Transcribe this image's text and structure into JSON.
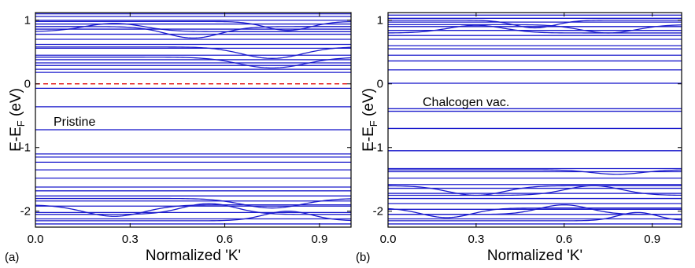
{
  "chart_data": [
    {
      "type": "line",
      "panel_label": "(a)",
      "annotation": "Pristine",
      "xlabel": "Normalized 'K'",
      "ylabel_main": "E-E",
      "ylabel_sub": "F",
      "ylabel_unit": " (eV)",
      "xlim": [
        0.0,
        1.0
      ],
      "ylim": [
        -2.25,
        1.12
      ],
      "xticks": [
        0.0,
        0.3,
        0.6,
        0.9
      ],
      "xtick_labels": [
        "0.0",
        "0.3",
        "0.6",
        "0.9"
      ],
      "yticks": [
        1,
        0,
        -1,
        -2
      ],
      "ytick_labels": [
        "1",
        "0",
        "-1",
        "-2"
      ],
      "line_color": "#1a1acc",
      "fermi_level": {
        "y": 0.0,
        "color": "#e00000",
        "style": "dashed"
      },
      "flat_bands": [
        0.18,
        0.23,
        0.29,
        0.33,
        0.38,
        0.45,
        0.56,
        0.62,
        0.7,
        0.78,
        0.86,
        0.94,
        1.0,
        1.06,
        1.1,
        -0.07,
        -0.36,
        -0.72,
        -1.1,
        -1.15,
        -1.23,
        -1.35,
        -1.48,
        -1.62,
        -1.68,
        -1.76,
        -1.84,
        -1.92,
        -2.02,
        -2.12,
        -2.2
      ],
      "curved_bands": [
        {
          "y0": 0.42,
          "y_mid": 0.25,
          "x_mid": 0.75,
          "width": 0.22
        },
        {
          "y0": 0.58,
          "y_mid": 0.4,
          "x_mid": 0.75,
          "width": 0.2
        },
        {
          "y0": 0.82,
          "y_mid": 0.95,
          "x_mid": 0.25,
          "width": 0.2
        },
        {
          "y0": 0.9,
          "y_mid": 0.72,
          "x_mid": 0.5,
          "width": 0.18
        },
        {
          "y0": 0.98,
          "y_mid": 0.84,
          "x_mid": 0.8,
          "width": 0.15
        },
        {
          "y0": -1.8,
          "y_mid": -1.95,
          "x_mid": 0.75,
          "width": 0.2
        },
        {
          "y0": -1.9,
          "y_mid": -2.08,
          "x_mid": 0.25,
          "width": 0.2
        },
        {
          "y0": -2.05,
          "y_mid": -1.88,
          "x_mid": 0.55,
          "width": 0.18
        },
        {
          "y0": -2.15,
          "y_mid": -2.0,
          "x_mid": 0.8,
          "width": 0.16
        }
      ]
    },
    {
      "type": "line",
      "panel_label": "(b)",
      "annotation": "Chalcogen vac.",
      "xlabel": "Normalized 'K'",
      "ylabel_main": "E-E",
      "ylabel_sub": "F",
      "ylabel_unit": " (eV)",
      "xlim": [
        0.0,
        1.0
      ],
      "ylim": [
        -2.25,
        1.12
      ],
      "xticks": [
        0.0,
        0.3,
        0.6,
        0.9
      ],
      "xtick_labels": [
        "0.0",
        "0.3",
        "0.6",
        "0.9"
      ],
      "yticks": [
        1,
        0,
        -1,
        -2
      ],
      "ytick_labels": [
        "1",
        "0",
        "-1",
        "-2"
      ],
      "line_color": "#1a1acc",
      "fermi_level": null,
      "flat_bands": [
        0.22,
        0.36,
        0.45,
        0.55,
        0.6,
        0.7,
        0.76,
        0.84,
        0.9,
        0.97,
        1.03,
        1.08,
        0.01,
        -0.39,
        -0.43,
        -0.7,
        -1.05,
        -1.33,
        -1.38,
        -1.48,
        -1.58,
        -1.64,
        -1.72,
        -1.8,
        -1.88,
        -1.97,
        -2.05,
        -2.12,
        -2.2
      ],
      "curved_bands": [
        {
          "y0": 0.8,
          "y_mid": 0.92,
          "x_mid": 0.3,
          "width": 0.2
        },
        {
          "y0": 0.93,
          "y_mid": 0.8,
          "x_mid": 0.75,
          "width": 0.2
        },
        {
          "y0": 1.0,
          "y_mid": 0.88,
          "x_mid": 0.5,
          "width": 0.15
        },
        {
          "y0": -1.35,
          "y_mid": -1.42,
          "x_mid": 0.78,
          "width": 0.18
        },
        {
          "y0": -1.6,
          "y_mid": -1.75,
          "x_mid": 0.3,
          "width": 0.2
        },
        {
          "y0": -1.75,
          "y_mid": -1.6,
          "x_mid": 0.7,
          "width": 0.2
        },
        {
          "y0": -1.95,
          "y_mid": -2.1,
          "x_mid": 0.2,
          "width": 0.18
        },
        {
          "y0": -2.05,
          "y_mid": -1.9,
          "x_mid": 0.6,
          "width": 0.18
        },
        {
          "y0": -2.15,
          "y_mid": -2.02,
          "x_mid": 0.85,
          "width": 0.14
        }
      ]
    }
  ]
}
